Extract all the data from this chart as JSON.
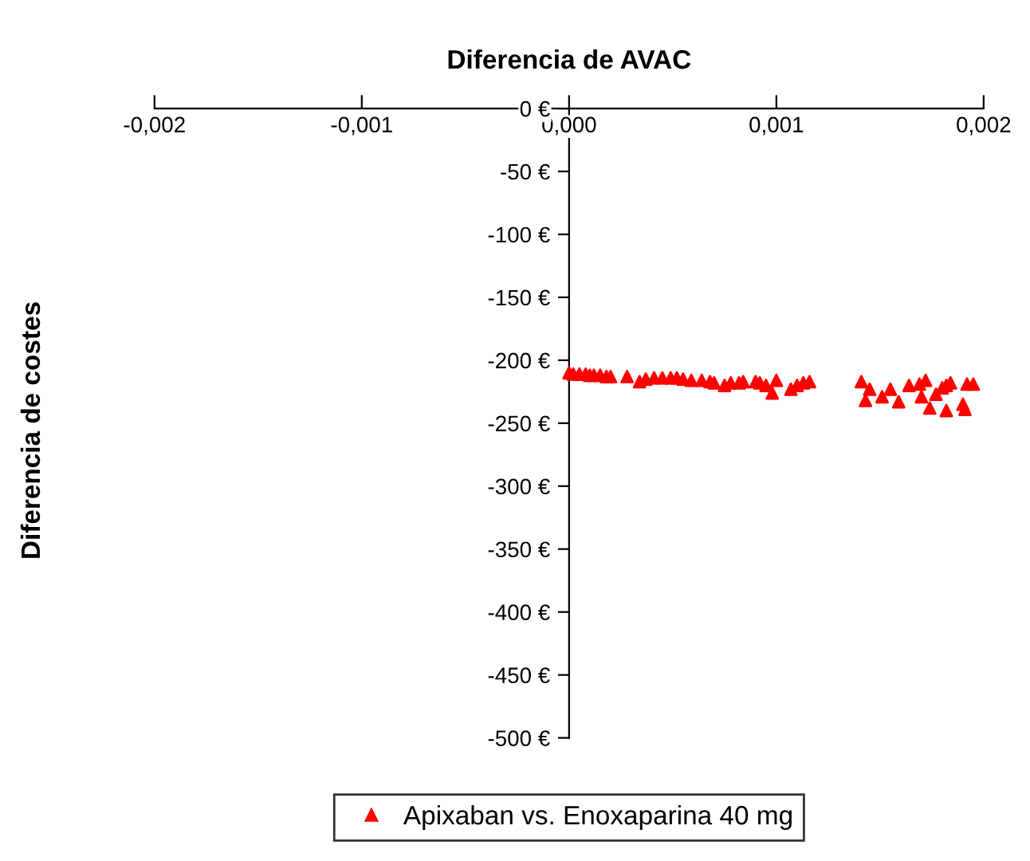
{
  "chart_data": {
    "type": "scatter",
    "xlabel": "Diferencia de AVAC",
    "ylabel": "Diferencia de costes",
    "xlim": [
      -0.002,
      0.002
    ],
    "xticks": [
      {
        "value": -0.002,
        "label": "-0,002"
      },
      {
        "value": -0.001,
        "label": "-0,001"
      },
      {
        "value": 0,
        "label": "0,000"
      },
      {
        "value": 0.001,
        "label": "0,001"
      },
      {
        "value": 0.002,
        "label": "0,002"
      }
    ],
    "ylim": [
      -500,
      0
    ],
    "yticks": [
      {
        "value": 0,
        "label": "0 €"
      },
      {
        "value": -50,
        "label": "-50 €"
      },
      {
        "value": -100,
        "label": "-100 €"
      },
      {
        "value": -150,
        "label": "-150 €"
      },
      {
        "value": -200,
        "label": "-200 €"
      },
      {
        "value": -250,
        "label": "-250 €"
      },
      {
        "value": -300,
        "label": "-300 €"
      },
      {
        "value": -350,
        "label": "-350 €"
      },
      {
        "value": -400,
        "label": "-400 €"
      },
      {
        "value": -450,
        "label": "-450 €"
      },
      {
        "value": -500,
        "label": "-500 €"
      }
    ],
    "grid": false,
    "legend": "bottom",
    "marker": "triangle",
    "series": [
      {
        "name": "Apixaban vs. Enoxaparina 40 mg",
        "color": "#ff0000",
        "x": [
          0.0,
          2e-05,
          5e-05,
          8e-05,
          0.0001,
          0.00012,
          0.00015,
          0.00018,
          0.0002,
          0.00028,
          0.00034,
          0.00037,
          0.00041,
          0.00045,
          0.00049,
          0.00052,
          0.00055,
          0.00059,
          0.00064,
          0.00068,
          0.0007,
          0.00075,
          0.00078,
          0.00082,
          0.00084,
          0.0009,
          0.00092,
          0.00095,
          0.00098,
          0.001,
          0.00107,
          0.0011,
          0.00113,
          0.00116,
          0.00141,
          0.00143,
          0.00145,
          0.00151,
          0.00155,
          0.00159,
          0.00164,
          0.00169,
          0.00172,
          0.0017,
          0.00174,
          0.00177,
          0.0018,
          0.00182,
          0.00184,
          0.00182,
          0.0019,
          0.00191,
          0.00192,
          0.00195
        ],
        "values": [
          -210,
          -211,
          -211,
          -211,
          -212,
          -212,
          -212,
          -213,
          -213,
          -213,
          -217,
          -215,
          -214,
          -214,
          -214,
          -214,
          -215,
          -216,
          -216,
          -217,
          -218,
          -220,
          -218,
          -218,
          -217,
          -217,
          -218,
          -220,
          -226,
          -216,
          -223,
          -220,
          -218,
          -217,
          -217,
          -232,
          -223,
          -229,
          -223,
          -233,
          -220,
          -219,
          -216,
          -229,
          -238,
          -227,
          -222,
          -220,
          -218,
          -240,
          -235,
          -239,
          -219,
          -219
        ]
      }
    ]
  }
}
